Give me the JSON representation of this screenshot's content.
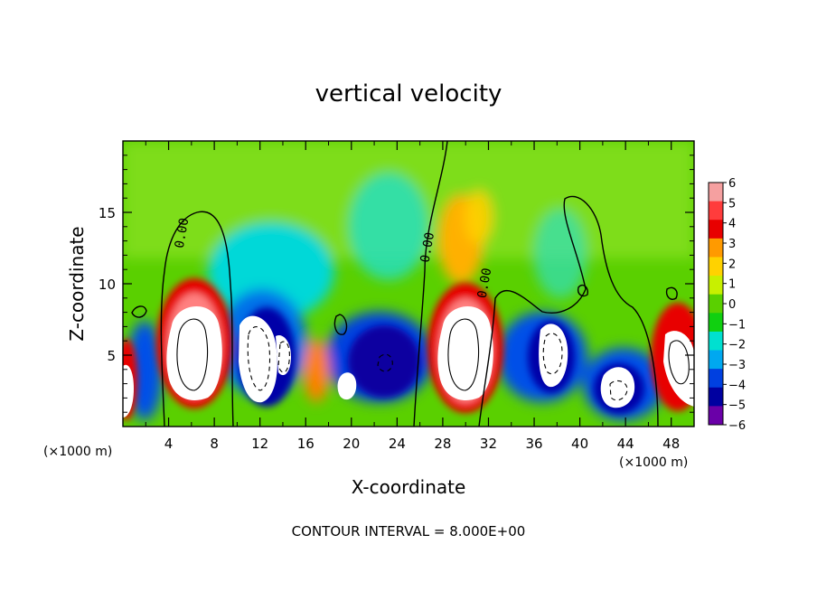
{
  "chart_data": {
    "type": "heatmap",
    "title": "vertical velocity",
    "xlabel": "X-coordinate",
    "ylabel": "Z-coordinate",
    "x_unit_left": "(×1000 m)",
    "x_unit_right": "(×1000 m)",
    "footer": "CONTOUR INTERVAL = 8.000E+00",
    "xlim": [
      0,
      50
    ],
    "ylim": [
      0,
      20
    ],
    "x_ticks": [
      "4",
      "8",
      "12",
      "16",
      "20",
      "24",
      "28",
      "32",
      "36",
      "40",
      "44",
      "48"
    ],
    "y_ticks": [
      "5",
      "10",
      "15"
    ],
    "x_tick_values": [
      4,
      8,
      12,
      16,
      20,
      24,
      28,
      32,
      36,
      40,
      44,
      48
    ],
    "y_tick_values": [
      5,
      10,
      15
    ],
    "colorbar": {
      "labels": [
        "6",
        "5",
        "4",
        "3",
        "2",
        "1",
        "0",
        "−1",
        "−2",
        "−3",
        "−4",
        "−5",
        "−6"
      ],
      "colors": [
        "#f5a0a0",
        "#ff3c3c",
        "#e80000",
        "#ff9a00",
        "#ffd200",
        "#c8f000",
        "#5ad000",
        "#10d010",
        "#00e0d0",
        "#00a8f0",
        "#0040e0",
        "#0000a0",
        "#6a00a8"
      ]
    },
    "contour_labels": [
      {
        "text": "0.00",
        "x": 5.5,
        "y": 13.5
      },
      {
        "text": "0.00",
        "x": 27.0,
        "y": 12.5
      },
      {
        "text": "0.00",
        "x": 32.0,
        "y": 10.0
      }
    ],
    "grid": false,
    "legend": "right"
  }
}
